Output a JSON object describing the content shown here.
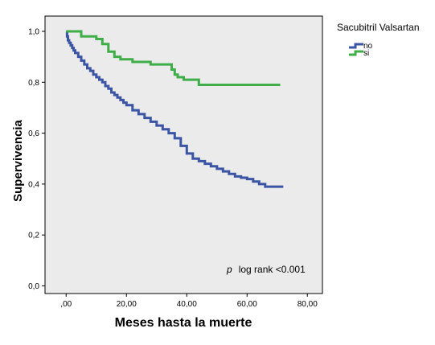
{
  "chart_data": {
    "type": "line",
    "step": true,
    "title": "",
    "xlabel": "Meses hasta la muerte",
    "ylabel": "Supervivencia",
    "xlim": [
      -7,
      85
    ],
    "ylim": [
      -0.03,
      1.06
    ],
    "xticks": [
      0,
      20,
      40,
      60,
      80
    ],
    "xtick_labels": [
      ",00",
      "20,00",
      "40,00",
      "60,00",
      "80,00"
    ],
    "yticks": [
      0,
      0.2,
      0.4,
      0.6,
      0.8,
      1.0
    ],
    "ytick_labels": [
      "0,0",
      "0,2",
      "0,4",
      "0,6",
      "0,8",
      "1,0"
    ],
    "grid": false,
    "plot_background": "#ebebeb",
    "legend": {
      "title": "Sacubitril Valsartan",
      "placement": "right"
    },
    "annotation": {
      "italic": "p",
      "text": "log rank <0.001"
    },
    "series": [
      {
        "name": "no",
        "color": "#3b55a4",
        "x": [
          0,
          0.3,
          0.6,
          1,
          1.5,
          2,
          2.5,
          3,
          4,
          5,
          6,
          7,
          8,
          9,
          10,
          11,
          12,
          13,
          14,
          15,
          16,
          17,
          18,
          19,
          20,
          22,
          24,
          26,
          28,
          30,
          32,
          34,
          36,
          38,
          40,
          42,
          44,
          46,
          48,
          50,
          52,
          54,
          56,
          58,
          60,
          62,
          64,
          66,
          68,
          72
        ],
        "y": [
          1.0,
          0.98,
          0.965,
          0.955,
          0.945,
          0.935,
          0.925,
          0.915,
          0.9,
          0.885,
          0.87,
          0.855,
          0.845,
          0.83,
          0.82,
          0.81,
          0.8,
          0.785,
          0.775,
          0.76,
          0.75,
          0.74,
          0.73,
          0.72,
          0.71,
          0.69,
          0.675,
          0.66,
          0.645,
          0.63,
          0.615,
          0.6,
          0.58,
          0.55,
          0.52,
          0.5,
          0.49,
          0.48,
          0.47,
          0.46,
          0.45,
          0.44,
          0.43,
          0.425,
          0.42,
          0.41,
          0.4,
          0.39,
          0.39,
          0.39
        ]
      },
      {
        "name": "si",
        "color": "#3fae48",
        "x": [
          0,
          5,
          10,
          12,
          14,
          16,
          18,
          22,
          28,
          35,
          36,
          37,
          38,
          39,
          40,
          44,
          50,
          60,
          71
        ],
        "y": [
          1.0,
          0.98,
          0.97,
          0.95,
          0.92,
          0.9,
          0.89,
          0.88,
          0.87,
          0.85,
          0.83,
          0.82,
          0.82,
          0.81,
          0.81,
          0.79,
          0.79,
          0.79,
          0.79
        ]
      }
    ]
  }
}
